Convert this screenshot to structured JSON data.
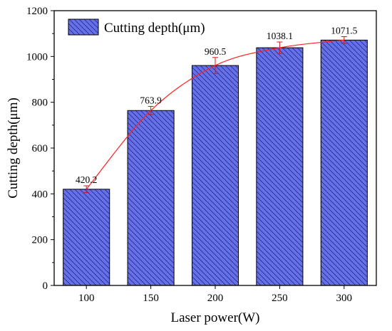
{
  "chart_data": {
    "type": "bar",
    "categories": [
      "100",
      "150",
      "200",
      "250",
      "300"
    ],
    "values": [
      420.2,
      763.9,
      960.5,
      1038.1,
      1071.5
    ],
    "data_labels": [
      "420.2",
      "763.9",
      "960.5",
      "1038.1",
      "1071.5"
    ],
    "errors": [
      15,
      18,
      35,
      25,
      15
    ],
    "ylim": [
      0,
      1200
    ],
    "yticks": [
      0,
      200,
      400,
      600,
      800,
      1000,
      1200
    ],
    "xlabel": "Laser power(W)",
    "ylabel": "Cutting depth(μm)",
    "legend": {
      "label": "Cutting depth(μm)",
      "placement": "top-left"
    },
    "series_name": "Cutting depth(μm)",
    "overlay": "smooth red line through bar tops with error bars",
    "grid": false,
    "colors": {
      "bar_fill": "#6670e8",
      "bar_hatch": "#2a2f8c",
      "bar_edge": "#000000",
      "line": "#ff2020",
      "error_bar": "#d01818"
    }
  }
}
